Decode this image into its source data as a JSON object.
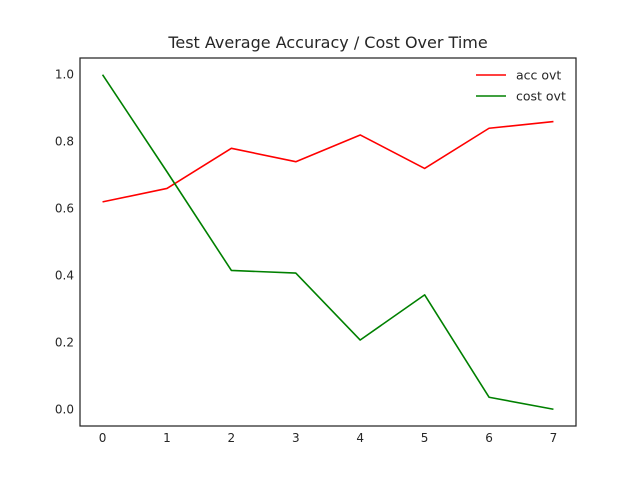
{
  "chart_data": {
    "type": "line",
    "title": "Test Average Accuracy / Cost Over Time",
    "xlabel": "",
    "ylabel": "",
    "x": [
      0,
      1,
      2,
      3,
      4,
      5,
      6,
      7
    ],
    "xlim": [
      -0.35,
      7.35
    ],
    "ylim": [
      -0.05,
      1.05
    ],
    "xticks": [
      0,
      1,
      2,
      3,
      4,
      5,
      6,
      7
    ],
    "yticks": [
      0.0,
      0.2,
      0.4,
      0.6,
      0.8,
      1.0
    ],
    "ytick_labels": [
      "0.0",
      "0.2",
      "0.4",
      "0.6",
      "0.8",
      "1.0"
    ],
    "grid": false,
    "legend_position": "top-right",
    "series": [
      {
        "name": "acc ovt",
        "color": "#ff0000",
        "values": [
          0.62,
          0.66,
          0.78,
          0.74,
          0.82,
          0.72,
          0.84,
          0.86
        ]
      },
      {
        "name": "cost ovt",
        "color": "#008000",
        "values": [
          1.0,
          0.71,
          0.415,
          0.407,
          0.207,
          0.342,
          0.036,
          0.0
        ]
      }
    ]
  }
}
